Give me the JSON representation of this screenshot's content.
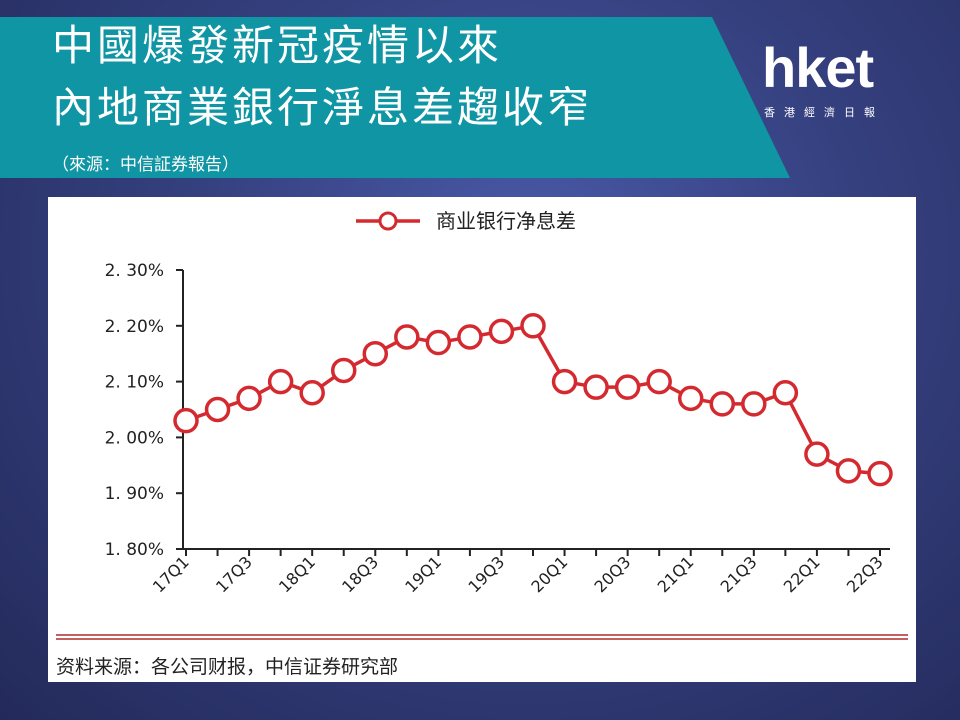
{
  "header": {
    "title_line1": "中國爆發新冠疫情以來",
    "title_line2": "內地商業銀行淨息差趨收窄",
    "source": "（來源：中信証券報告）",
    "banner_color": "#0f95a3"
  },
  "logo": {
    "word": "hket",
    "subtitle": "香港經濟日報"
  },
  "chart_source": "资料来源：各公司财报，中信证券研究部",
  "chart_data": {
    "type": "line",
    "title": "",
    "xlabel": "",
    "ylabel": "",
    "ylim": [
      1.8,
      2.3
    ],
    "y_ticks": [
      1.8,
      1.9,
      2.0,
      2.1,
      2.2,
      2.3
    ],
    "y_tick_labels": [
      "1. 80%",
      "1. 90%",
      "2. 00%",
      "2. 10%",
      "2. 20%",
      "2. 30%"
    ],
    "x_tick_labels": [
      "17Q1",
      "17Q3",
      "18Q1",
      "18Q3",
      "19Q1",
      "19Q3",
      "20Q1",
      "20Q3",
      "21Q1",
      "21Q3",
      "22Q1",
      "22Q3"
    ],
    "categories": [
      "17Q1",
      "17Q2",
      "17Q3",
      "17Q4",
      "18Q1",
      "18Q2",
      "18Q3",
      "18Q4",
      "19Q1",
      "19Q2",
      "19Q3",
      "19Q4",
      "20Q1",
      "20Q2",
      "20Q3",
      "20Q4",
      "21Q1",
      "21Q2",
      "21Q3",
      "21Q4",
      "22Q1",
      "22Q2",
      "22Q3"
    ],
    "series": [
      {
        "name": "商业银行净息差",
        "color": "#d42a2f",
        "values": [
          2.03,
          2.05,
          2.07,
          2.1,
          2.08,
          2.12,
          2.15,
          2.18,
          2.17,
          2.18,
          2.19,
          2.2,
          2.1,
          2.09,
          2.09,
          2.1,
          2.07,
          2.06,
          2.06,
          2.08,
          1.97,
          1.94,
          1.935
        ]
      }
    ],
    "legend_position": "top-center",
    "grid": false
  }
}
